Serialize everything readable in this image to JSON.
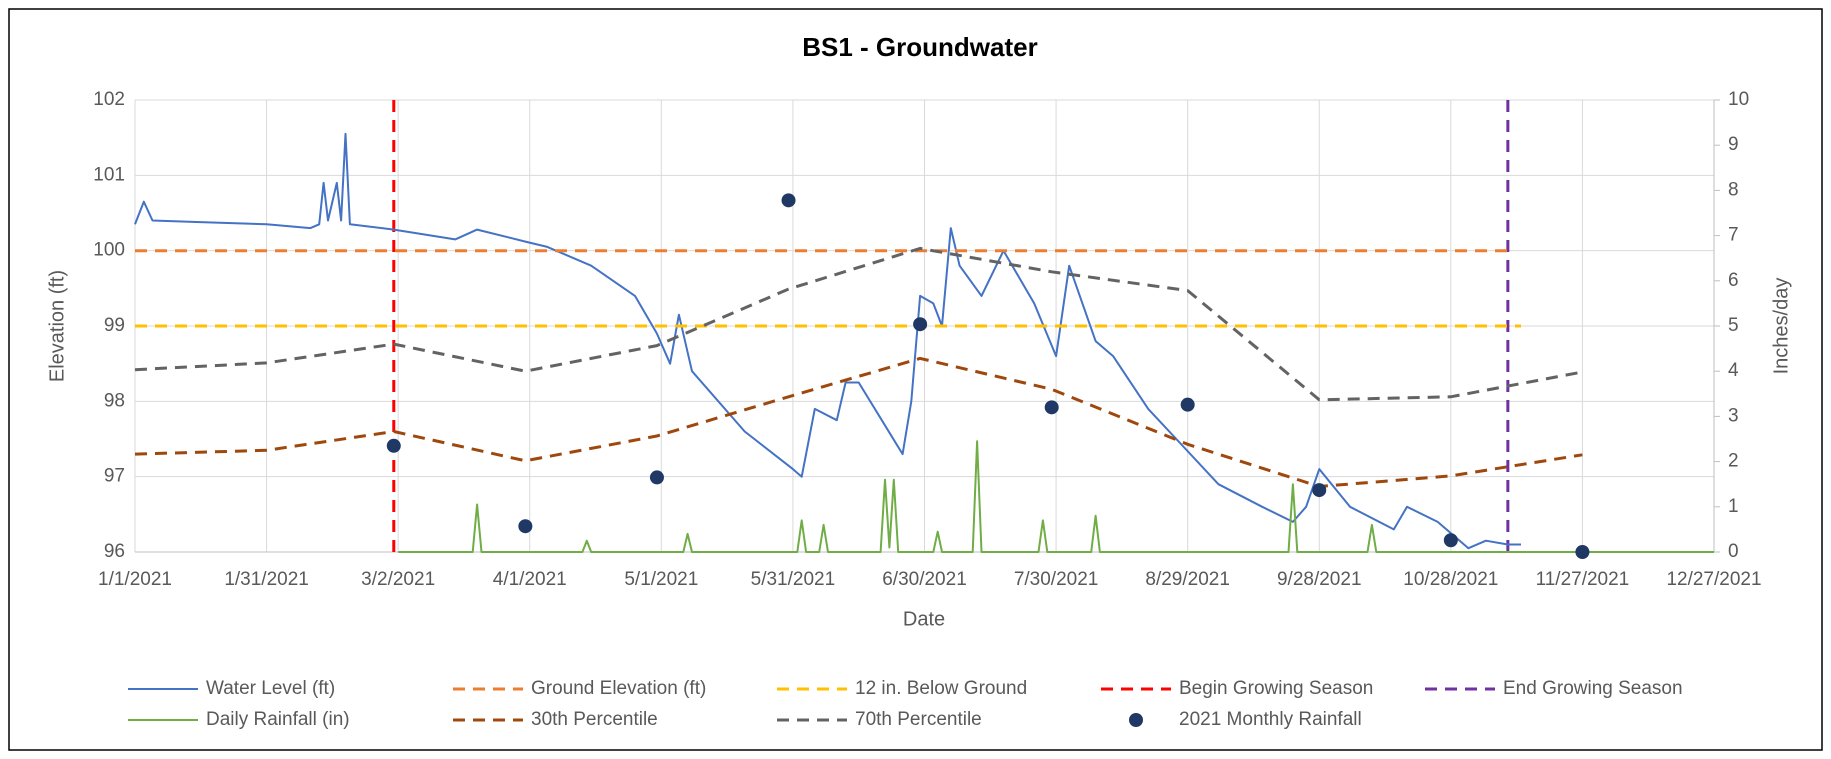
{
  "chart_data": {
    "type": "line",
    "title": "BS1 - Groundwater",
    "x_label": "Date",
    "y_label": "Elevation (ft)",
    "y2_label": "Inches/day",
    "xlim": [
      "1/1/2021",
      "12/27/2021"
    ],
    "xticks": [
      "1/1/2021",
      "1/31/2021",
      "3/2/2021",
      "4/1/2021",
      "5/1/2021",
      "5/31/2021",
      "6/30/2021",
      "7/30/2021",
      "8/29/2021",
      "9/28/2021",
      "10/28/2021",
      "11/27/2021",
      "12/27/2021"
    ],
    "ylim": [
      96,
      102
    ],
    "yticks": [
      96,
      97,
      98,
      99,
      100,
      101,
      102
    ],
    "y2lim": [
      0,
      10
    ],
    "y2ticks": [
      0,
      1,
      2,
      3,
      4,
      5,
      6,
      7,
      8,
      9,
      10
    ],
    "grid": true,
    "legend": "bottom",
    "series": [
      {
        "name": "Water Level (ft)",
        "kind": "line",
        "color": "#4472c4",
        "dash": false,
        "x": [
          "1/1/2021",
          "1/3/2021",
          "1/5/2021",
          "1/15/2021",
          "1/31/2021",
          "2/10/2021",
          "2/12/2021",
          "2/13/2021",
          "2/14/2021",
          "2/16/2021",
          "2/17/2021",
          "2/18/2021",
          "2/19/2021",
          "3/1/2021",
          "3/15/2021",
          "3/20/2021",
          "3/31/2021",
          "4/5/2021",
          "4/15/2021",
          "4/25/2021",
          "4/30/2021",
          "5/3/2021",
          "5/5/2021",
          "5/8/2021",
          "5/20/2021",
          "5/31/2021",
          "6/2/2021",
          "6/5/2021",
          "6/10/2021",
          "6/12/2021",
          "6/15/2021",
          "6/25/2021",
          "6/27/2021",
          "6/29/2021",
          "7/2/2021",
          "7/4/2021",
          "7/6/2021",
          "7/8/2021",
          "7/13/2021",
          "7/18/2021",
          "7/25/2021",
          "7/30/2021",
          "8/2/2021",
          "8/8/2021",
          "8/12/2021",
          "8/20/2021",
          "8/28/2021",
          "9/5/2021",
          "9/15/2021",
          "9/22/2021",
          "9/25/2021",
          "9/28/2021",
          "10/5/2021",
          "10/15/2021",
          "10/18/2021",
          "10/25/2021",
          "11/1/2021",
          "11/5/2021",
          "11/10/2021",
          "11/13/2021"
        ],
        "values": [
          100.35,
          100.65,
          100.4,
          100.38,
          100.35,
          100.3,
          100.35,
          100.9,
          100.4,
          100.9,
          100.4,
          101.55,
          100.35,
          100.28,
          100.15,
          100.28,
          100.12,
          100.05,
          99.8,
          99.4,
          98.9,
          98.5,
          99.15,
          98.4,
          97.6,
          97.1,
          97.0,
          97.9,
          97.75,
          98.25,
          98.25,
          97.3,
          98.0,
          99.4,
          99.3,
          99.0,
          100.3,
          99.8,
          99.4,
          100.0,
          99.3,
          98.6,
          99.8,
          98.8,
          98.6,
          97.9,
          97.4,
          96.9,
          96.6,
          96.4,
          96.6,
          97.1,
          96.6,
          96.3,
          96.6,
          96.4,
          96.05,
          96.15,
          96.1,
          96.1
        ]
      },
      {
        "name": "Ground Elevation (ft)",
        "kind": "line",
        "color": "#ed7d31",
        "dash": true,
        "x": [
          "1/1/2021",
          "11/10/2021"
        ],
        "values": [
          100,
          100
        ]
      },
      {
        "name": "12 in. Below Ground",
        "kind": "line",
        "color": "#ffc000",
        "dash": true,
        "x": [
          "1/1/2021",
          "11/13/2021"
        ],
        "values": [
          99,
          99
        ]
      },
      {
        "name": "Begin Growing Season",
        "kind": "vline",
        "color": "#ff0000",
        "dash": true,
        "x": [
          "3/1/2021"
        ]
      },
      {
        "name": "End Growing Season",
        "kind": "vline",
        "color": "#7030a0",
        "dash": true,
        "x": [
          "11/10/2021"
        ]
      },
      {
        "name": "Daily Rainfall (in)",
        "kind": "line",
        "axis": "y2",
        "color": "#70ad47",
        "dash": false,
        "x": [
          "3/2/2021",
          "3/19/2021",
          "3/20/2021",
          "3/21/2021",
          "4/13/2021",
          "4/14/2021",
          "4/15/2021",
          "5/6/2021",
          "5/7/2021",
          "5/8/2021",
          "6/1/2021",
          "6/2/2021",
          "6/3/2021",
          "6/6/2021",
          "6/7/2021",
          "6/8/2021",
          "6/20/2021",
          "6/21/2021",
          "6/22/2021",
          "6/23/2021",
          "6/24/2021",
          "7/2/2021",
          "7/3/2021",
          "7/4/2021",
          "7/11/2021",
          "7/12/2021",
          "7/13/2021",
          "7/26/2021",
          "7/27/2021",
          "7/28/2021",
          "8/7/2021",
          "8/8/2021",
          "8/9/2021",
          "9/21/2021",
          "9/22/2021",
          "9/23/2021",
          "10/9/2021",
          "10/10/2021",
          "10/11/2021",
          "12/27/2021"
        ],
        "values": [
          0,
          0,
          1.05,
          0,
          0,
          0.25,
          0,
          0,
          0.4,
          0,
          0,
          0.7,
          0,
          0,
          0.6,
          0,
          0,
          1.6,
          0.1,
          1.6,
          0,
          0,
          0.45,
          0,
          0,
          2.45,
          0,
          0,
          0.7,
          0,
          0,
          0.8,
          0,
          0,
          1.5,
          0,
          0,
          0.6,
          0,
          0
        ]
      },
      {
        "name": "30th Percentile",
        "kind": "line",
        "color": "#9e480e",
        "dash": true,
        "x": [
          "1/1/2021",
          "1/31/2021",
          "3/1/2021",
          "3/31/2021",
          "4/30/2021",
          "5/30/2021",
          "6/29/2021",
          "7/29/2021",
          "8/29/2021",
          "9/28/2021",
          "10/28/2021",
          "11/27/2021"
        ],
        "values": [
          97.3,
          97.35,
          97.6,
          97.21,
          97.54,
          98.06,
          98.57,
          98.16,
          97.43,
          96.87,
          97.01,
          97.29
        ]
      },
      {
        "name": "70th Percentile",
        "kind": "line",
        "color": "#636363",
        "dash": true,
        "x": [
          "1/1/2021",
          "1/31/2021",
          "3/1/2021",
          "3/31/2021",
          "4/30/2021",
          "5/30/2021",
          "6/29/2021",
          "7/29/2021",
          "8/29/2021",
          "9/28/2021",
          "10/28/2021",
          "11/27/2021"
        ],
        "values": [
          98.42,
          98.51,
          98.76,
          98.4,
          98.74,
          99.49,
          100.03,
          99.72,
          99.47,
          98.02,
          98.06,
          98.39
        ]
      },
      {
        "name": "2021 Monthly Rainfall",
        "kind": "scatter",
        "axis": "y2",
        "color": "#1f3864",
        "x": [
          "3/1/2021",
          "3/31/2021",
          "4/30/2021",
          "5/30/2021",
          "6/29/2021",
          "7/29/2021",
          "8/29/2021",
          "9/28/2021",
          "10/28/2021",
          "11/27/2021"
        ],
        "values": [
          2.35,
          0.57,
          1.65,
          7.78,
          5.04,
          3.2,
          3.26,
          1.37,
          0.26,
          0
        ]
      }
    ]
  }
}
